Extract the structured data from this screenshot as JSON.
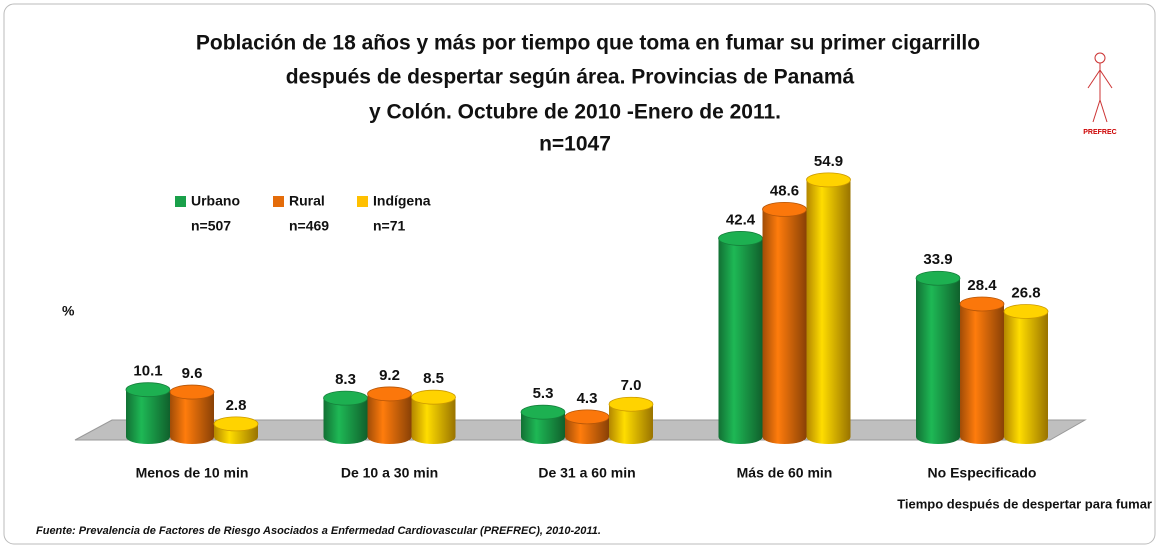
{
  "chart_data": {
    "type": "bar",
    "title": [
      "Población de 18 años y más por tiempo que toma en fumar su primer cigarrillo",
      "después de despertar según área. Provincias de Panamá",
      "y Colón. Octubre de 2010 -Enero de 2011."
    ],
    "subtitle": "n=1047",
    "logo_text": "PREFREC",
    "y_label": "%",
    "x_label": "Tiempo después de despertar para fumar",
    "source": "Fuente: Prevalencia de Factores de Riesgo Asociados a Enfermedad Cardiovascular (PREFREC), 2010-2011.",
    "categories": [
      "Menos de 10 min",
      "De 10 a 30 min",
      "De 31 a 60 min",
      "Más de 60 min",
      "No Especificado"
    ],
    "series": [
      {
        "name": "Urbano",
        "sample": "n=507",
        "color": "#1aa04a",
        "values": [
          10.1,
          8.3,
          5.3,
          42.4,
          33.9
        ],
        "value_labels": [
          "10.1",
          "8.3",
          "5.3",
          "42.4",
          "33.9"
        ]
      },
      {
        "name": "Rural",
        "sample": "n=469",
        "color": "#e46c0a",
        "values": [
          9.6,
          9.2,
          4.3,
          48.6,
          28.4
        ],
        "value_labels": [
          "9.6",
          "9.2",
          "4.3",
          "48.6",
          "28.4"
        ]
      },
      {
        "name": "Indígena",
        "sample": "n=71",
        "color": "#ffc000",
        "values": [
          2.8,
          8.5,
          7.0,
          54.9,
          26.8
        ],
        "value_labels": [
          "2.8",
          "8.5",
          "7.0",
          "54.9",
          "26.8"
        ]
      }
    ],
    "ylim": [
      0,
      60
    ]
  }
}
